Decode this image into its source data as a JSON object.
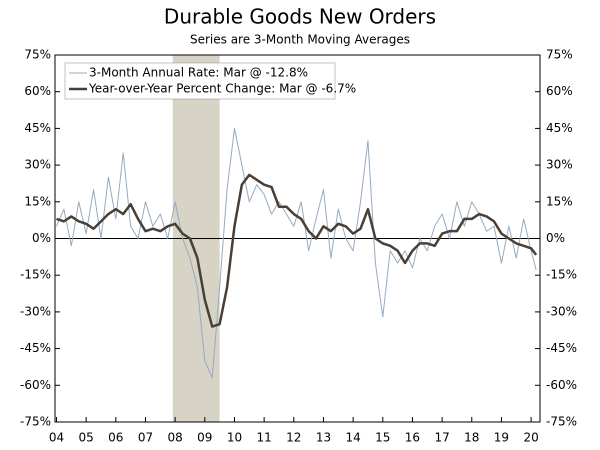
{
  "chart_data": {
    "type": "line",
    "title": "Durable Goods New Orders",
    "subtitle": "Series are 3-Month Moving Averages",
    "x": [
      2004,
      2004.25,
      2004.5,
      2004.75,
      2005,
      2005.25,
      2005.5,
      2005.75,
      2006,
      2006.25,
      2006.5,
      2006.75,
      2007,
      2007.25,
      2007.5,
      2007.75,
      2008,
      2008.25,
      2008.5,
      2008.75,
      2009,
      2009.25,
      2009.5,
      2009.75,
      2010,
      2010.25,
      2010.5,
      2010.75,
      2011,
      2011.25,
      2011.5,
      2011.75,
      2012,
      2012.25,
      2012.5,
      2012.75,
      2013,
      2013.25,
      2013.5,
      2013.75,
      2014,
      2014.25,
      2014.5,
      2014.75,
      2015,
      2015.25,
      2015.5,
      2015.75,
      2016,
      2016.25,
      2016.5,
      2016.75,
      2017,
      2017.25,
      2017.5,
      2017.75,
      2018,
      2018.25,
      2018.5,
      2018.75,
      2019,
      2019.25,
      2019.5,
      2019.75,
      2020,
      2020.17
    ],
    "series": [
      {
        "name": "3-Month Annual Rate: Mar @ -12.8%",
        "color": "#93abc2",
        "width": 1,
        "values": [
          5,
          12,
          -3,
          15,
          2,
          20,
          0,
          25,
          8,
          35,
          5,
          0,
          15,
          5,
          10,
          0,
          15,
          0,
          -8,
          -20,
          -50,
          -57,
          -20,
          20,
          45,
          30,
          15,
          22,
          18,
          10,
          15,
          10,
          5,
          15,
          -5,
          8,
          20,
          -8,
          12,
          0,
          -5,
          15,
          40,
          -10,
          -32,
          -5,
          -10,
          -5,
          -12,
          0,
          -5,
          5,
          10,
          0,
          15,
          5,
          15,
          10,
          3,
          5,
          -10,
          5,
          -8,
          8,
          -5,
          -12.8
        ]
      },
      {
        "name": "Year-over-Year Percent Change: Mar @ -6.7%",
        "color": "#4a3f36",
        "width": 2.5,
        "values": [
          8,
          7,
          9,
          7,
          6,
          4,
          7,
          10,
          12,
          10,
          14,
          8,
          3,
          4,
          3,
          5,
          6,
          2,
          0,
          -8,
          -25,
          -36,
          -35,
          -20,
          5,
          22,
          26,
          24,
          22,
          21,
          13,
          13,
          10,
          8,
          3,
          0,
          5,
          3,
          6,
          5,
          2,
          4,
          12,
          0,
          -2,
          -3,
          -5,
          -10,
          -5,
          -2,
          -2,
          -3,
          2,
          3,
          3,
          8,
          8,
          10,
          9,
          7,
          2,
          0,
          -2,
          -3,
          -4,
          -6.7
        ]
      }
    ],
    "shading": [
      2007.92,
      2009.5
    ],
    "xlim": [
      2003.95,
      2020.3
    ],
    "xticks": [
      {
        "value": 2004,
        "label": "04"
      },
      {
        "value": 2005,
        "label": "05"
      },
      {
        "value": 2006,
        "label": "06"
      },
      {
        "value": 2007,
        "label": "07"
      },
      {
        "value": 2008,
        "label": "08"
      },
      {
        "value": 2009,
        "label": "09"
      },
      {
        "value": 2010,
        "label": "10"
      },
      {
        "value": 2011,
        "label": "11"
      },
      {
        "value": 2012,
        "label": "12"
      },
      {
        "value": 2013,
        "label": "13"
      },
      {
        "value": 2014,
        "label": "14"
      },
      {
        "value": 2015,
        "label": "15"
      },
      {
        "value": 2016,
        "label": "16"
      },
      {
        "value": 2017,
        "label": "17"
      },
      {
        "value": 2018,
        "label": "18"
      },
      {
        "value": 2019,
        "label": "19"
      },
      {
        "value": 2020,
        "label": "20"
      }
    ],
    "ylim": [
      -75,
      75
    ],
    "yticks": [
      {
        "value": 75,
        "label": "75%"
      },
      {
        "value": 60,
        "label": "60%"
      },
      {
        "value": 45,
        "label": "45%"
      },
      {
        "value": 30,
        "label": "30%"
      },
      {
        "value": 15,
        "label": "15%"
      },
      {
        "value": 0,
        "label": "0%"
      },
      {
        "value": -15,
        "label": "-15%"
      },
      {
        "value": -30,
        "label": "-30%"
      },
      {
        "value": -45,
        "label": "-45%"
      },
      {
        "value": -60,
        "label": "-60%"
      },
      {
        "value": -75,
        "label": "-75%"
      }
    ],
    "y2lim": [
      -75,
      75
    ],
    "y2ticks": [
      {
        "value": 75,
        "label": "75%"
      },
      {
        "value": 60,
        "label": "60%"
      },
      {
        "value": 45,
        "label": "45%"
      },
      {
        "value": 30,
        "label": "30%"
      },
      {
        "value": 15,
        "label": "15%"
      },
      {
        "value": 0,
        "label": "0%"
      },
      {
        "value": -15,
        "label": "-15%"
      },
      {
        "value": -30,
        "label": "-30%"
      },
      {
        "value": -45,
        "label": "-45%"
      },
      {
        "value": -60,
        "label": "-60%"
      },
      {
        "value": -75,
        "label": "-75%"
      }
    ],
    "legend": "top-left"
  }
}
